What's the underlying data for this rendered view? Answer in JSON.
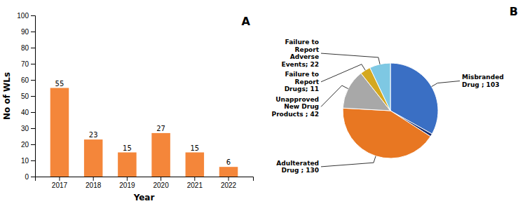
{
  "chart_data": [
    {
      "type": "bar",
      "title": "A",
      "categories": [
        "2017",
        "2018",
        "2019",
        "2020",
        "2021",
        "2022"
      ],
      "values": [
        55,
        23,
        15,
        27,
        15,
        6
      ],
      "color": "#F4863A",
      "xlabel": "Year",
      "ylabel": "No of WLs",
      "ylim": [
        0,
        100
      ],
      "yticks": [
        0,
        10,
        20,
        30,
        40,
        50,
        60,
        70,
        80,
        90,
        100
      ],
      "data_labels": true,
      "grid": false
    },
    {
      "type": "pie",
      "title": "B",
      "categories": [
        "Misbranded\nDrug ; 103",
        null,
        "Adulterated\nDrug ; 130",
        "Unapproved\nNew Drug\nProducts ; 42",
        "Failure to\nReport\nDrugs; 11",
        "Failure to\nReport\nAdverse\nEvents; 22"
      ],
      "values": [
        103,
        3,
        130,
        42,
        11,
        22
      ],
      "colors": [
        "#3A6FC4",
        "#1A2E6E",
        "#E87722",
        "#A8A8A8",
        "#D4A820",
        "#7EC8E3"
      ]
    }
  ]
}
